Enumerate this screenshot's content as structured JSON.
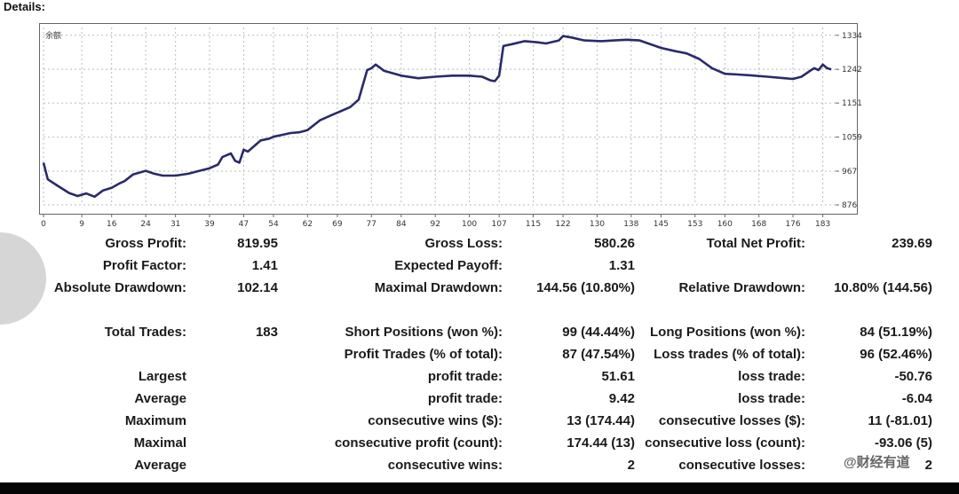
{
  "header": {
    "title": "Details:"
  },
  "chart": {
    "legend_label": "余额",
    "line_color": "#2a2a6a",
    "grid": true,
    "x_ticks": [
      "0",
      "9",
      "16",
      "24",
      "31",
      "39",
      "47",
      "54",
      "62",
      "69",
      "77",
      "84",
      "92",
      "100",
      "107",
      "115",
      "122",
      "130",
      "138",
      "145",
      "153",
      "160",
      "168",
      "176",
      "183"
    ],
    "y_ticks": [
      "1334",
      "1242",
      "1151",
      "1059",
      "967",
      "876"
    ]
  },
  "chart_data": {
    "type": "line",
    "title": "",
    "xlabel": "",
    "ylabel": "",
    "xlim": [
      0,
      186
    ],
    "ylim": [
      876,
      1355
    ],
    "grid": true,
    "series": [
      {
        "name": "余额",
        "x": [
          0,
          1,
          3,
          6,
          8,
          10,
          12,
          14,
          16,
          18,
          19,
          21,
          24,
          26,
          28,
          31,
          34,
          36,
          39,
          41,
          42,
          44,
          45,
          46,
          47,
          48,
          50,
          51,
          53,
          54,
          56,
          58,
          60,
          62,
          65,
          68,
          72,
          74,
          76,
          77,
          78,
          80,
          84,
          88,
          92,
          96,
          100,
          103,
          105,
          106,
          107,
          108,
          110,
          113,
          116,
          118,
          121,
          122,
          124,
          127,
          131,
          134,
          137,
          140,
          142,
          145,
          148,
          151,
          154,
          157,
          160,
          163,
          166,
          170,
          174,
          176,
          178,
          180,
          181,
          182,
          183,
          184,
          185
        ],
        "y": [
          990,
          945,
          930,
          908,
          900,
          907,
          898,
          915,
          922,
          935,
          940,
          958,
          968,
          960,
          955,
          955,
          960,
          966,
          975,
          985,
          1005,
          1015,
          995,
          990,
          1025,
          1020,
          1040,
          1050,
          1055,
          1060,
          1065,
          1070,
          1072,
          1078,
          1105,
          1120,
          1140,
          1160,
          1240,
          1245,
          1255,
          1238,
          1225,
          1218,
          1222,
          1225,
          1225,
          1222,
          1212,
          1210,
          1225,
          1305,
          1310,
          1318,
          1315,
          1312,
          1320,
          1332,
          1328,
          1320,
          1318,
          1320,
          1322,
          1320,
          1312,
          1300,
          1292,
          1285,
          1270,
          1245,
          1230,
          1228,
          1226,
          1222,
          1218,
          1216,
          1222,
          1238,
          1245,
          1240,
          1255,
          1245,
          1242
        ]
      }
    ]
  },
  "stats": {
    "r1": {
      "l1": "Gross Profit:",
      "v1": "819.95",
      "l2": "Gross Loss:",
      "v2": "580.26",
      "l3": "Total Net Profit:",
      "v3": "239.69"
    },
    "r2": {
      "l1": "Profit Factor:",
      "v1": "1.41",
      "l2": "Expected Payoff:",
      "v2": "1.31"
    },
    "r3": {
      "l1": "Absolute Drawdown:",
      "v1": "102.14",
      "l2": "Maximal Drawdown:",
      "v2": "144.56 (10.80%)",
      "l3": "Relative Drawdown:",
      "v3": "10.80% (144.56)"
    },
    "r4": {
      "l1": "Total Trades:",
      "v1": "183",
      "l2": "Short Positions (won %):",
      "v2": "99 (44.44%)",
      "l3": "Long Positions (won %):",
      "v3": "84 (51.19%)"
    },
    "r5": {
      "l2": "Profit Trades (% of total):",
      "v2": "87 (47.54%)",
      "l3": "Loss trades (% of total):",
      "v3": "96 (52.46%)"
    },
    "r6": {
      "l1": "Largest",
      "l2": "profit trade:",
      "v2": "51.61",
      "l3": "loss trade:",
      "v3": "-50.76"
    },
    "r7": {
      "l1": "Average",
      "l2": "profit trade:",
      "v2": "9.42",
      "l3": "loss trade:",
      "v3": "-6.04"
    },
    "r8": {
      "l1": "Maximum",
      "l2": "consecutive wins ($):",
      "v2": "13 (174.44)",
      "l3": "consecutive losses ($):",
      "v3": "11 (-81.01)"
    },
    "r9": {
      "l1": "Maximal",
      "l2": "consecutive profit (count):",
      "v2": "174.44 (13)",
      "l3": "consecutive loss (count):",
      "v3": "-93.06 (5)"
    },
    "r10": {
      "l1": "Average",
      "l2": "consecutive wins:",
      "v2": "2",
      "l3": "consecutive losses:",
      "v3": "2"
    }
  },
  "watermark": {
    "text": "@财经有道"
  }
}
